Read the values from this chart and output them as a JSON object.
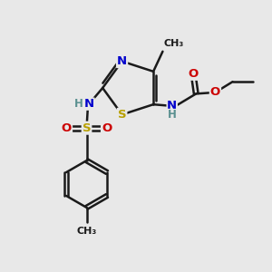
{
  "bg_color": "#e8e8e8",
  "bond_color": "#1a1a1a",
  "bond_width": 1.8,
  "atom_colors": {
    "C": "#1a1a1a",
    "N": "#0000cc",
    "S": "#b8a000",
    "O": "#cc0000",
    "H": "#5a9090"
  },
  "font_size": 9.5,
  "fig_size": [
    3.0,
    3.0
  ],
  "dpi": 100,
  "xlim": [
    0,
    10
  ],
  "ylim": [
    0,
    10
  ]
}
